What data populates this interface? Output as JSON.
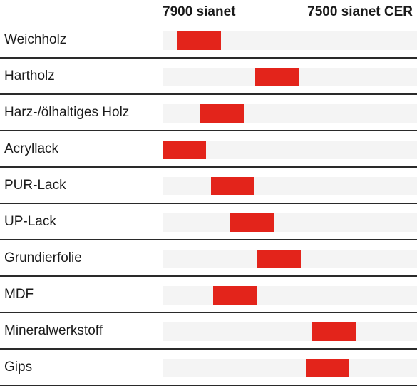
{
  "headers": {
    "left": "7900 sianet",
    "right": "7500 sianet CER"
  },
  "colors": {
    "bar": "#e3241b",
    "track": "#f4f4f4",
    "divider": "#2a2a2a",
    "text": "#1a1a1a"
  },
  "chart_data": {
    "type": "bar",
    "scale": "0 = 7900 sianet, 1 = 7500 sianet CER",
    "xlim": [
      0,
      1
    ],
    "bar_width": 0.17,
    "categories": [
      "Weichholz",
      "Hartholz",
      "Harz-/ölhaltiges Holz",
      "Acryllack",
      "PUR-Lack",
      "UP-Lack",
      "Grundierfolie",
      "MDF",
      "Mineralwerkstoff",
      "Gips"
    ],
    "values": [
      0.07,
      0.44,
      0.18,
      0.0,
      0.23,
      0.32,
      0.45,
      0.24,
      0.71,
      0.68
    ]
  }
}
